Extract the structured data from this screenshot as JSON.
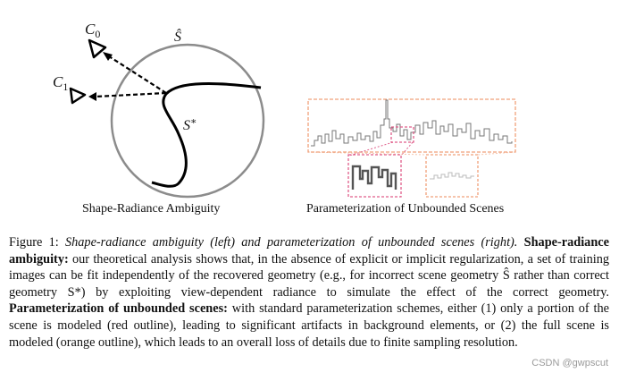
{
  "figure": {
    "left_panel": {
      "caption": "Shape-Radiance Ambiguity",
      "camera0": "C0",
      "camera1": "C1",
      "surface_hat": "Ŝ",
      "surface_star": "S*"
    },
    "right_panel": {
      "caption": "Parameterization of Unbounded Scenes"
    },
    "colors": {
      "red_outline": "#e05d8a",
      "orange_outline": "#f0a07a"
    }
  },
  "caption": {
    "label": "Figure 1:",
    "summary": "Shape-radiance ambiguity (left) and parameterization of unbounded scenes (right).",
    "heading1": "Shape-radiance ambiguity:",
    "body1": "our theoretical analysis shows that, in the absence of explicit or implicit regularization, a set of training images can be fit independently of the recovered geometry (e.g., for incorrect scene geometry Ŝ rather than correct geometry S*) by exploiting view-dependent radiance to simulate the effect of the correct geometry.",
    "heading2": "Parameterization of unbounded scenes:",
    "body2": "with standard parameterization schemes, either (1) only a portion of the scene is modeled (red outline), leading to significant artifacts in background elements, or (2) the full scene is modeled (orange outline), which leads to an overall loss of details due to finite sampling resolution."
  },
  "watermark": "CSDN @gwpscut"
}
